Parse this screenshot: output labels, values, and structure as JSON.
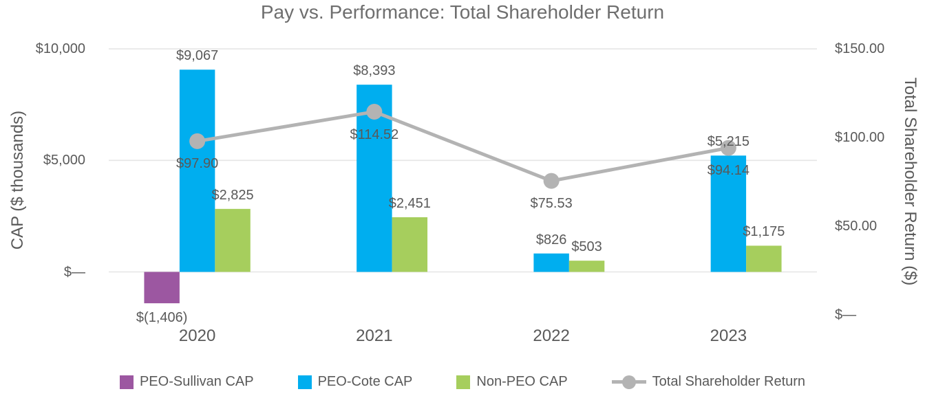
{
  "chart_data": {
    "type": "combo-bar-line",
    "title": "Pay vs. Performance: Total Shareholder Return",
    "categories": [
      "2020",
      "2021",
      "2022",
      "2023"
    ],
    "left_axis": {
      "label": "CAP ($ thousands)",
      "min": -2000,
      "max": 10000,
      "ticks": [
        {
          "label": "$10,000",
          "value": 10000
        },
        {
          "label": "$5,000",
          "value": 5000
        },
        {
          "label": "$—",
          "value": 0
        }
      ],
      "gridlines": true
    },
    "right_axis": {
      "label": "Total Shareholder Return ($)",
      "min": 0,
      "max": 150,
      "ticks": [
        {
          "label": "$150.00",
          "value": 150
        },
        {
          "label": "$100.00",
          "value": 100
        },
        {
          "label": "$50.00",
          "value": 50
        },
        {
          "label": "$—",
          "value": 0
        }
      ]
    },
    "series": [
      {
        "name": "PEO-Sullivan CAP",
        "type": "bar",
        "axis": "left",
        "color": "#9C57A1",
        "values": [
          -1406,
          null,
          null,
          null
        ],
        "labels": [
          "$(1,406)",
          "",
          "",
          ""
        ]
      },
      {
        "name": "PEO-Cote CAP",
        "type": "bar",
        "axis": "left",
        "color": "#00AEEF",
        "values": [
          9067,
          8393,
          826,
          5215
        ],
        "labels": [
          "$9,067",
          "$8,393",
          "$826",
          "$5,215"
        ]
      },
      {
        "name": "Non-PEO CAP",
        "type": "bar",
        "axis": "left",
        "color": "#A6CE5D",
        "values": [
          2825,
          2451,
          503,
          1175
        ],
        "labels": [
          "$2,825",
          "$2,451",
          "$503",
          "$1,175"
        ]
      },
      {
        "name": "Total Shareholder Return",
        "type": "line",
        "axis": "right",
        "color": "#B3B3B3",
        "values": [
          97.9,
          114.52,
          75.53,
          94.14
        ],
        "labels": [
          "$97.90",
          "$114.52",
          "$75.53",
          "$94.14"
        ]
      }
    ],
    "legend_position": "bottom"
  }
}
